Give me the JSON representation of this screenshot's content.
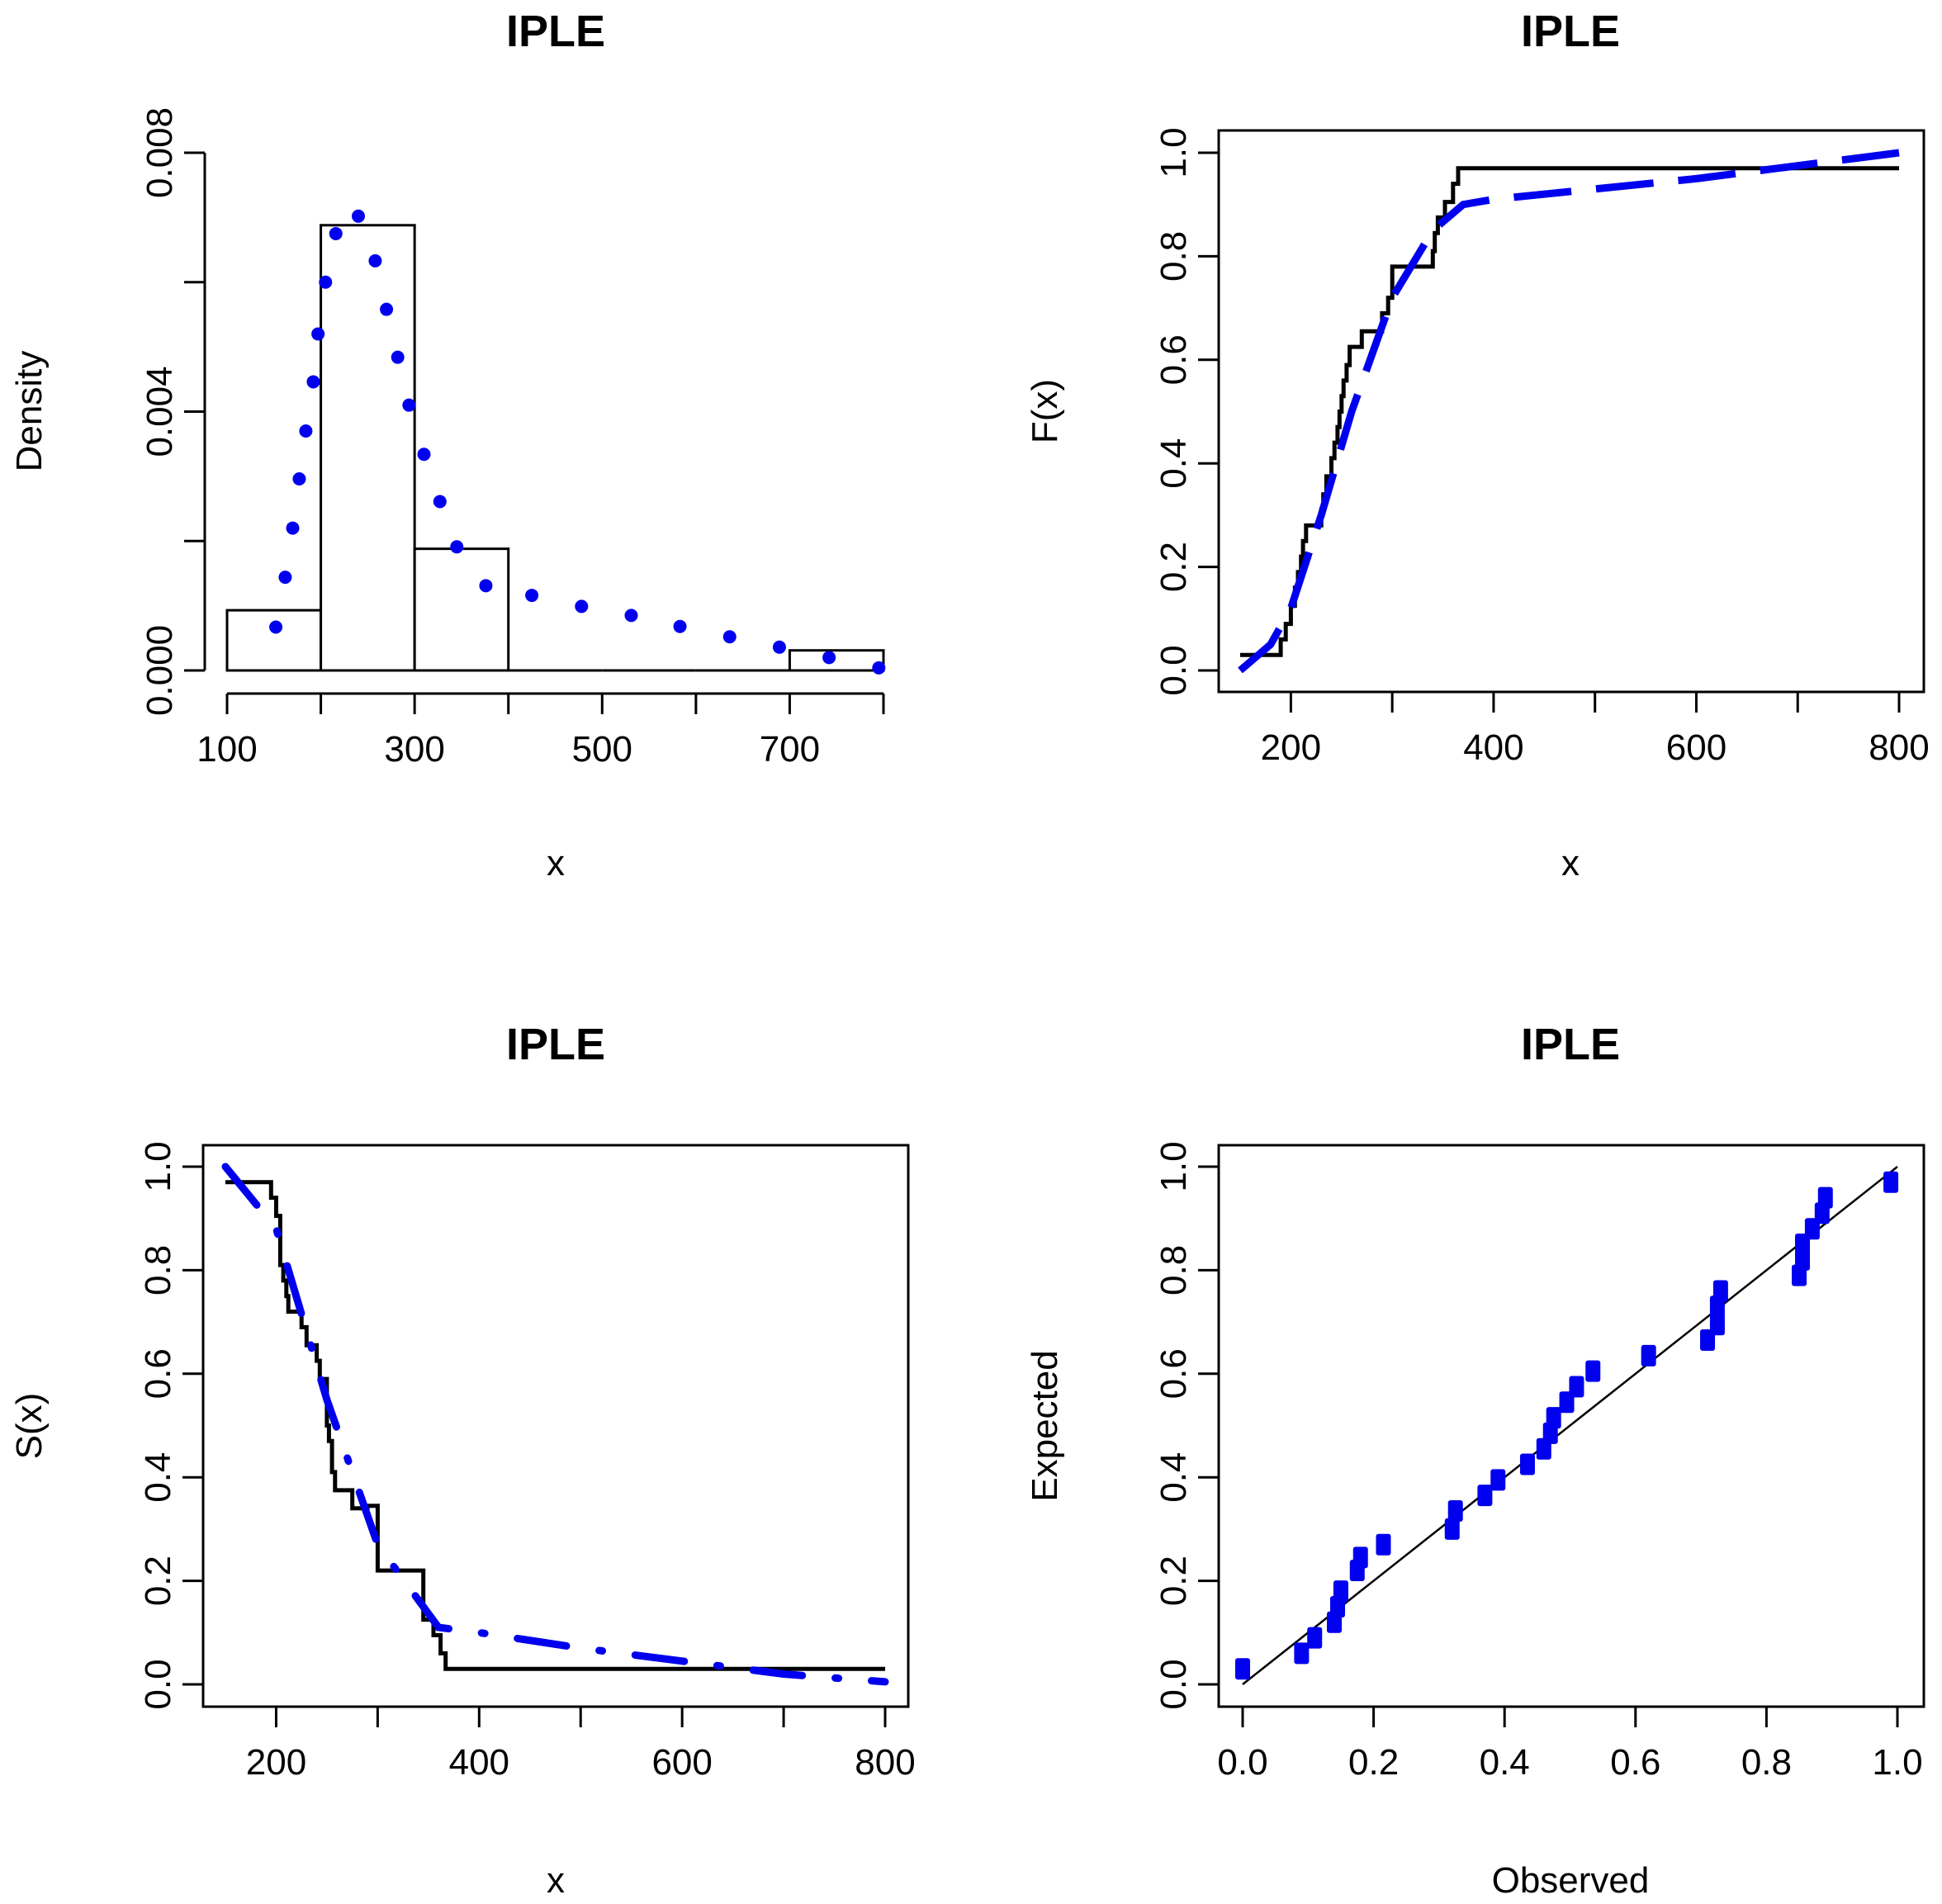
{
  "chart_data": [
    {
      "type": "histogram",
      "title": "IPLE",
      "xlabel": "x",
      "ylabel": "Density",
      "xlim": [
        100,
        800
      ],
      "ylim": [
        0,
        0.008
      ],
      "xticks": [
        100,
        200,
        300,
        400,
        500,
        600,
        700,
        800
      ],
      "xtick_labels": [
        "100",
        "",
        "300",
        "",
        "500",
        "",
        "700",
        ""
      ],
      "yticks": [
        0,
        0.002,
        0.004,
        0.006,
        0.008
      ],
      "ytick_labels": [
        "0.000",
        "",
        "0.004",
        "",
        "0.008"
      ],
      "bins": [
        {
          "x0": 100,
          "x1": 200,
          "density": 0.00093
        },
        {
          "x0": 200,
          "x1": 300,
          "density": 0.00688
        },
        {
          "x0": 300,
          "x1": 400,
          "density": 0.00188
        },
        {
          "x0": 400,
          "x1": 500,
          "density": 0
        },
        {
          "x0": 500,
          "x1": 600,
          "density": 0
        },
        {
          "x0": 600,
          "x1": 700,
          "density": 0
        },
        {
          "x0": 700,
          "x1": 800,
          "density": 0.00031
        }
      ],
      "series": [
        {
          "name": "fitted density",
          "color": "#0000ee",
          "style": "dots",
          "points": [
            [
              152,
              0.00067
            ],
            [
              162,
              0.00144
            ],
            [
              170,
              0.0022
            ],
            [
              177,
              0.00296
            ],
            [
              184,
              0.0037
            ],
            [
              192,
              0.00446
            ],
            [
              197,
              0.0052
            ],
            [
              205,
              0.006
            ],
            [
              216,
              0.00675
            ],
            [
              240,
              0.00702
            ],
            [
              258,
              0.00633
            ],
            [
              270,
              0.00558
            ],
            [
              282,
              0.00484
            ],
            [
              294,
              0.0041
            ],
            [
              310,
              0.00334
            ],
            [
              327,
              0.00261
            ],
            [
              345,
              0.00191
            ],
            [
              376,
              0.00131
            ],
            [
              425,
              0.00116
            ],
            [
              478,
              0.00099
            ],
            [
              531,
              0.00085
            ],
            [
              583,
              0.00068
            ],
            [
              636,
              0.00052
            ],
            [
              689,
              0.00036
            ],
            [
              742,
              0.0002
            ],
            [
              795,
              4e-05
            ]
          ]
        }
      ]
    },
    {
      "type": "line",
      "title": "IPLE",
      "xlabel": "x",
      "ylabel": "F(x)",
      "xlim": [
        150,
        800
      ],
      "ylim": [
        0,
        1
      ],
      "xticks": [
        200,
        300,
        400,
        500,
        600,
        700,
        800
      ],
      "xtick_labels": [
        "200",
        "",
        "400",
        "",
        "600",
        "",
        "800"
      ],
      "yticks": [
        0,
        0.2,
        0.4,
        0.6,
        0.8,
        1.0
      ],
      "ytick_labels": [
        "0.0",
        "0.2",
        "0.4",
        "0.6",
        "0.8",
        "1.0"
      ],
      "series": [
        {
          "name": "empirical CDF",
          "color": "#000000",
          "style": "step",
          "points": [
            [
              150,
              0.03
            ],
            [
              190,
              0.03
            ],
            [
              190,
              0.06
            ],
            [
              195,
              0.06
            ],
            [
              195,
              0.09
            ],
            [
              200,
              0.09
            ],
            [
              200,
              0.125
            ],
            [
              204,
              0.125
            ],
            [
              204,
              0.16
            ],
            [
              207,
              0.16
            ],
            [
              207,
              0.19
            ],
            [
              210,
              0.19
            ],
            [
              210,
              0.22
            ],
            [
              212,
              0.22
            ],
            [
              212,
              0.25
            ],
            [
              215,
              0.25
            ],
            [
              215,
              0.28
            ],
            [
              230,
              0.28
            ],
            [
              230,
              0.31
            ],
            [
              232,
              0.31
            ],
            [
              232,
              0.34
            ],
            [
              235,
              0.34
            ],
            [
              235,
              0.375
            ],
            [
              240,
              0.375
            ],
            [
              240,
              0.41
            ],
            [
              243,
              0.41
            ],
            [
              243,
              0.44
            ],
            [
              246,
              0.44
            ],
            [
              246,
              0.47
            ],
            [
              248,
              0.47
            ],
            [
              248,
              0.5
            ],
            [
              250,
              0.5
            ],
            [
              250,
              0.53
            ],
            [
              252,
              0.53
            ],
            [
              252,
              0.56
            ],
            [
              255,
              0.56
            ],
            [
              255,
              0.59
            ],
            [
              258,
              0.59
            ],
            [
              258,
              0.625
            ],
            [
              270,
              0.625
            ],
            [
              270,
              0.655
            ],
            [
              290,
              0.655
            ],
            [
              290,
              0.69
            ],
            [
              296,
              0.69
            ],
            [
              296,
              0.72
            ],
            [
              300,
              0.72
            ],
            [
              300,
              0.78
            ],
            [
              340,
              0.78
            ],
            [
              340,
              0.81
            ],
            [
              342,
              0.81
            ],
            [
              342,
              0.845
            ],
            [
              345,
              0.845
            ],
            [
              345,
              0.875
            ],
            [
              352,
              0.875
            ],
            [
              352,
              0.905
            ],
            [
              360,
              0.905
            ],
            [
              360,
              0.94
            ],
            [
              365,
              0.94
            ],
            [
              365,
              0.97
            ],
            [
              800,
              0.97
            ]
          ]
        },
        {
          "name": "fitted CDF",
          "color": "#0000ee",
          "style": "dashed",
          "points": [
            [
              150,
              0.0
            ],
            [
              180,
              0.05
            ],
            [
              200,
              0.12
            ],
            [
              230,
              0.3
            ],
            [
              260,
              0.5
            ],
            [
              300,
              0.72
            ],
            [
              340,
              0.85
            ],
            [
              370,
              0.9
            ],
            [
              400,
              0.91
            ],
            [
              500,
              0.93
            ],
            [
              600,
              0.95
            ],
            [
              700,
              0.975
            ],
            [
              800,
              1.0
            ]
          ]
        }
      ]
    },
    {
      "type": "line",
      "title": "IPLE",
      "xlabel": "x",
      "ylabel": "S(x)",
      "xlim": [
        150,
        800
      ],
      "ylim": [
        0,
        1
      ],
      "xticks": [
        200,
        300,
        400,
        500,
        600,
        700,
        800
      ],
      "xtick_labels": [
        "200",
        "",
        "400",
        "",
        "600",
        "",
        "800"
      ],
      "yticks": [
        0,
        0.2,
        0.4,
        0.6,
        0.8,
        1.0
      ],
      "ytick_labels": [
        "0.0",
        "0.2",
        "0.4",
        "0.6",
        "0.8",
        "1.0"
      ],
      "series": [
        {
          "name": "empirical survival",
          "color": "#000000",
          "style": "step",
          "points": [
            [
              150,
              0.97
            ],
            [
              195,
              0.97
            ],
            [
              195,
              0.94
            ],
            [
              200,
              0.94
            ],
            [
              200,
              0.905
            ],
            [
              204,
              0.905
            ],
            [
              204,
              0.81
            ],
            [
              207,
              0.81
            ],
            [
              207,
              0.78
            ],
            [
              210,
              0.78
            ],
            [
              210,
              0.75
            ],
            [
              212,
              0.75
            ],
            [
              212,
              0.72
            ],
            [
              225,
              0.72
            ],
            [
              225,
              0.69
            ],
            [
              230,
              0.69
            ],
            [
              230,
              0.655
            ],
            [
              240,
              0.655
            ],
            [
              240,
              0.625
            ],
            [
              243,
              0.625
            ],
            [
              243,
              0.59
            ],
            [
              250,
              0.59
            ],
            [
              250,
              0.5
            ],
            [
              252,
              0.5
            ],
            [
              252,
              0.47
            ],
            [
              255,
              0.47
            ],
            [
              255,
              0.41
            ],
            [
              258,
              0.41
            ],
            [
              258,
              0.375
            ],
            [
              275,
              0.375
            ],
            [
              275,
              0.34
            ],
            [
              290,
              0.34
            ],
            [
              290,
              0.345
            ],
            [
              300,
              0.345
            ],
            [
              300,
              0.22
            ],
            [
              345,
              0.22
            ],
            [
              345,
              0.125
            ],
            [
              355,
              0.125
            ],
            [
              355,
              0.095
            ],
            [
              362,
              0.095
            ],
            [
              362,
              0.06
            ],
            [
              367,
              0.06
            ],
            [
              367,
              0.03
            ],
            [
              800,
              0.03
            ]
          ]
        },
        {
          "name": "fitted survival",
          "color": "#0000ee",
          "style": "dashdot",
          "points": [
            [
              150,
              1.0
            ],
            [
              200,
              0.88
            ],
            [
              250,
              0.55
            ],
            [
              300,
              0.27
            ],
            [
              360,
              0.11
            ],
            [
              400,
              0.1
            ],
            [
              500,
              0.07
            ],
            [
              600,
              0.045
            ],
            [
              700,
              0.02
            ],
            [
              800,
              0.005
            ]
          ]
        }
      ]
    },
    {
      "type": "scatter",
      "title": "IPLE",
      "xlabel": "Observed",
      "ylabel": "Expected",
      "xlim": [
        0,
        1
      ],
      "ylim": [
        0,
        1
      ],
      "xticks": [
        0,
        0.2,
        0.4,
        0.6,
        0.8,
        1.0
      ],
      "xtick_labels": [
        "0.0",
        "0.2",
        "0.4",
        "0.6",
        "0.8",
        "1.0"
      ],
      "yticks": [
        0,
        0.2,
        0.4,
        0.6,
        0.8,
        1.0
      ],
      "ytick_labels": [
        "0.0",
        "0.2",
        "0.4",
        "0.6",
        "0.8",
        "1.0"
      ],
      "reference_line": {
        "from": [
          0,
          0
        ],
        "to": [
          1,
          1
        ],
        "color": "#000000"
      },
      "series": [
        {
          "name": "P-P points",
          "color": "#0000ee",
          "style": "squares",
          "points": [
            [
              0.0,
              0.03
            ],
            [
              0.09,
              0.06
            ],
            [
              0.11,
              0.09
            ],
            [
              0.14,
              0.12
            ],
            [
              0.145,
              0.15
            ],
            [
              0.15,
              0.18
            ],
            [
              0.175,
              0.22
            ],
            [
              0.18,
              0.245
            ],
            [
              0.215,
              0.27
            ],
            [
              0.32,
              0.3
            ],
            [
              0.325,
              0.335
            ],
            [
              0.37,
              0.365
            ],
            [
              0.39,
              0.395
            ],
            [
              0.435,
              0.425
            ],
            [
              0.46,
              0.455
            ],
            [
              0.47,
              0.485
            ],
            [
              0.475,
              0.515
            ],
            [
              0.495,
              0.545
            ],
            [
              0.51,
              0.575
            ],
            [
              0.535,
              0.605
            ],
            [
              0.62,
              0.635
            ],
            [
              0.71,
              0.665
            ],
            [
              0.725,
              0.695
            ],
            [
              0.725,
              0.73
            ],
            [
              0.73,
              0.76
            ],
            [
              0.85,
              0.79
            ],
            [
              0.855,
              0.82
            ],
            [
              0.855,
              0.85
            ],
            [
              0.87,
              0.88
            ],
            [
              0.885,
              0.91
            ],
            [
              0.89,
              0.94
            ],
            [
              0.99,
              0.97
            ]
          ]
        }
      ]
    }
  ]
}
